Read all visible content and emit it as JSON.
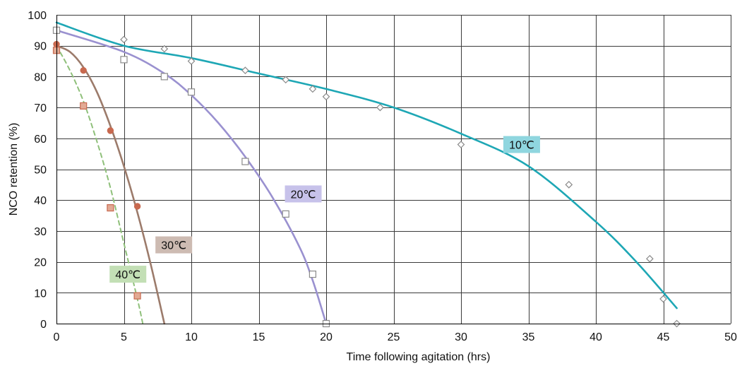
{
  "chart_data": {
    "type": "scatter",
    "title": "",
    "xlabel": "Time following agitation (hrs)",
    "ylabel": "NCO retention (%)",
    "xlim": [
      0,
      50
    ],
    "ylim": [
      0,
      100
    ],
    "x_ticks": [
      0,
      5,
      10,
      15,
      20,
      25,
      30,
      35,
      40,
      45,
      50
    ],
    "y_ticks": [
      0,
      10,
      20,
      30,
      40,
      50,
      60,
      70,
      80,
      90,
      100
    ],
    "grid": true,
    "legend": "none; series are labelled directly on the plot",
    "series": [
      {
        "name": "10℃",
        "color": "#1ea7b5",
        "label_bg": "#8fd6df",
        "line_style": "solid",
        "marker": "diamond",
        "marker_color": "#8a8a8a",
        "marker_fill": "#ffffff",
        "points": [
          {
            "x": 0,
            "y": 95
          },
          {
            "x": 5,
            "y": 92
          },
          {
            "x": 8,
            "y": 89
          },
          {
            "x": 10,
            "y": 85
          },
          {
            "x": 14,
            "y": 82
          },
          {
            "x": 17,
            "y": 79
          },
          {
            "x": 19,
            "y": 76
          },
          {
            "x": 20,
            "y": 73.5
          },
          {
            "x": 24,
            "y": 70
          },
          {
            "x": 30,
            "y": 58
          },
          {
            "x": 38,
            "y": 45
          },
          {
            "x": 44,
            "y": 21
          },
          {
            "x": 45,
            "y": 8
          },
          {
            "x": 46,
            "y": 0
          }
        ],
        "curve": [
          {
            "x": 0,
            "y": 97.5
          },
          {
            "x": 5,
            "y": 90
          },
          {
            "x": 10,
            "y": 86
          },
          {
            "x": 15,
            "y": 81
          },
          {
            "x": 20,
            "y": 76
          },
          {
            "x": 25,
            "y": 70
          },
          {
            "x": 30,
            "y": 61.5
          },
          {
            "x": 35,
            "y": 51
          },
          {
            "x": 40,
            "y": 33
          },
          {
            "x": 43,
            "y": 20
          },
          {
            "x": 46,
            "y": 5
          }
        ]
      },
      {
        "name": "20℃",
        "color": "#9a91d0",
        "label_bg": "#c7c2ea",
        "line_style": "solid",
        "marker": "square",
        "marker_color": "#8a8a8a",
        "marker_fill": "#ffffff",
        "points": [
          {
            "x": 0,
            "y": 95
          },
          {
            "x": 5,
            "y": 85.5
          },
          {
            "x": 8,
            "y": 80
          },
          {
            "x": 10,
            "y": 75
          },
          {
            "x": 14,
            "y": 52.5
          },
          {
            "x": 17,
            "y": 35.5
          },
          {
            "x": 19,
            "y": 16
          },
          {
            "x": 20,
            "y": 0
          }
        ],
        "curve": [
          {
            "x": 0,
            "y": 95
          },
          {
            "x": 5,
            "y": 88
          },
          {
            "x": 8,
            "y": 81
          },
          {
            "x": 10,
            "y": 74
          },
          {
            "x": 12,
            "y": 65
          },
          {
            "x": 14,
            "y": 54
          },
          {
            "x": 16,
            "y": 41
          },
          {
            "x": 18,
            "y": 25
          },
          {
            "x": 19,
            "y": 14
          },
          {
            "x": 20,
            "y": 0
          }
        ]
      },
      {
        "name": "30℃",
        "color": "#9c7b6b",
        "label_bg": "#cdbbb2",
        "line_style": "solid",
        "marker": "circle",
        "marker_color": "#c8694f",
        "marker_fill": "#c8694f",
        "points": [
          {
            "x": 0,
            "y": 90.5
          },
          {
            "x": 2,
            "y": 82
          },
          {
            "x": 4,
            "y": 62.5
          },
          {
            "x": 6,
            "y": 38
          }
        ],
        "curve": [
          {
            "x": 0,
            "y": 90
          },
          {
            "x": 1,
            "y": 88
          },
          {
            "x": 2,
            "y": 83
          },
          {
            "x": 3,
            "y": 75
          },
          {
            "x": 4,
            "y": 64
          },
          {
            "x": 5,
            "y": 51
          },
          {
            "x": 6,
            "y": 36
          },
          {
            "x": 7,
            "y": 19
          },
          {
            "x": 8,
            "y": 0
          }
        ]
      },
      {
        "name": "40℃",
        "color": "#8fc07a",
        "label_bg": "#c3dfb5",
        "line_style": "dashed",
        "marker": "square",
        "marker_color": "#c8694f",
        "marker_fill": "#e2aa94",
        "points": [
          {
            "x": 0,
            "y": 88.5
          },
          {
            "x": 2,
            "y": 70.5
          },
          {
            "x": 4,
            "y": 37.5
          },
          {
            "x": 6,
            "y": 9
          }
        ],
        "curve": [
          {
            "x": 0,
            "y": 90
          },
          {
            "x": 1,
            "y": 82
          },
          {
            "x": 2,
            "y": 72
          },
          {
            "x": 3,
            "y": 59
          },
          {
            "x": 4,
            "y": 44
          },
          {
            "x": 5,
            "y": 26
          },
          {
            "x": 6,
            "y": 8
          },
          {
            "x": 6.4,
            "y": 0
          }
        ]
      }
    ],
    "annotations": [
      {
        "text": "10℃",
        "series": "10℃",
        "x": 34.5,
        "y": 58
      },
      {
        "text": "20℃",
        "series": "20℃",
        "x": 18.3,
        "y": 42
      },
      {
        "text": "30℃",
        "series": "30℃",
        "x": 8.7,
        "y": 25.5
      },
      {
        "text": "40℃",
        "series": "40℃",
        "x": 5.3,
        "y": 16
      }
    ]
  }
}
